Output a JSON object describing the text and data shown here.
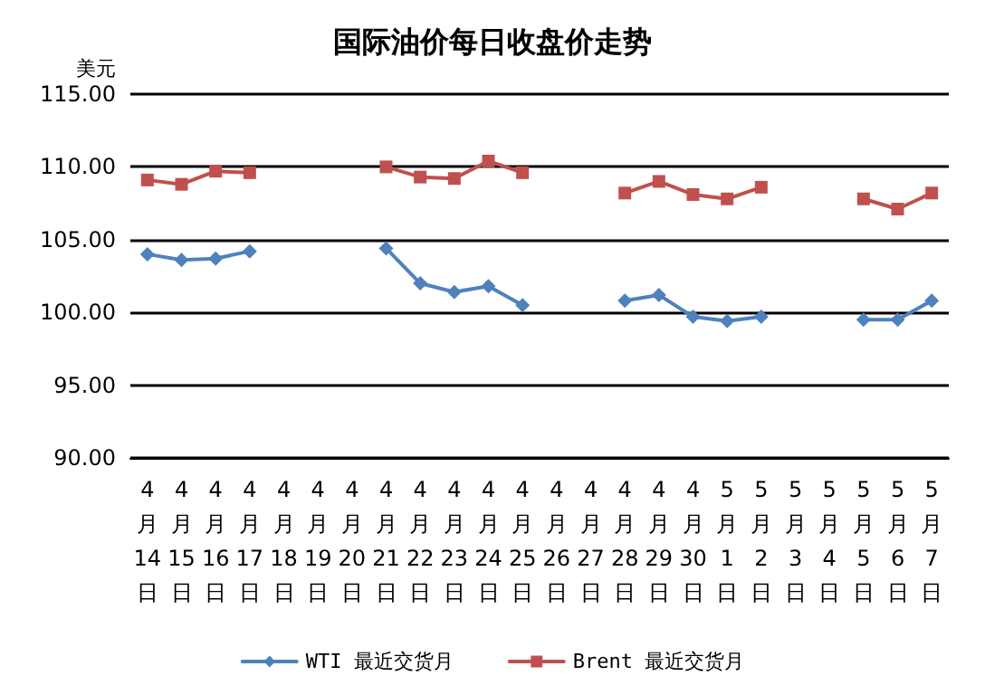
{
  "chart_data": {
    "type": "line",
    "title": "国际油价每日收盘价走势",
    "ylabel": "美元",
    "categories": [
      "4月14日",
      "4月15日",
      "4月16日",
      "4月17日",
      "4月18日",
      "4月19日",
      "4月20日",
      "4月21日",
      "4月22日",
      "4月23日",
      "4月24日",
      "4月25日",
      "4月26日",
      "4月27日",
      "4月28日",
      "4月29日",
      "4月30日",
      "5月1日",
      "5月2日",
      "5月3日",
      "5月4日",
      "5月5日",
      "5月6日",
      "5月7日"
    ],
    "series": [
      {
        "name": "WTI 最近交货月",
        "color": "#4f81bd",
        "marker": "diamond",
        "values": [
          104.0,
          103.6,
          103.7,
          104.2,
          null,
          null,
          null,
          104.4,
          102.0,
          101.4,
          101.8,
          100.5,
          null,
          null,
          100.8,
          101.2,
          99.7,
          99.4,
          99.7,
          null,
          null,
          99.5,
          99.5,
          100.8
        ]
      },
      {
        "name": "Brent 最近交货月",
        "color": "#c0504d",
        "marker": "square",
        "values": [
          109.1,
          108.8,
          109.7,
          109.6,
          null,
          null,
          null,
          110.0,
          109.3,
          109.2,
          110.4,
          109.6,
          null,
          null,
          108.2,
          109.0,
          108.1,
          107.8,
          108.6,
          null,
          null,
          107.8,
          107.1,
          108.2
        ]
      }
    ],
    "ylim": [
      90,
      115
    ],
    "yticks": [
      {
        "value": 90,
        "label": "90.00"
      },
      {
        "value": 95,
        "label": "95.00"
      },
      {
        "value": 100,
        "label": "100.00"
      },
      {
        "value": 105,
        "label": "105.00"
      },
      {
        "value": 110,
        "label": "110.00"
      },
      {
        "value": 115,
        "label": "115.00"
      }
    ],
    "grid": "y",
    "legend": "bottom",
    "line_style": "solid"
  }
}
